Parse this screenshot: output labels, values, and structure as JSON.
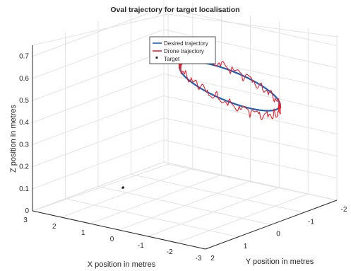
{
  "chart_data": {
    "type": "line",
    "projection": "3d",
    "title": "Oval trajectory for target localisation",
    "xlabel": "X position in metres",
    "ylabel": "Y position in metres",
    "zlabel": "Z position in metres",
    "xlim": [
      -3,
      3
    ],
    "ylim": [
      -2,
      2
    ],
    "zlim": [
      0,
      0.75
    ],
    "x_ticks": [
      "3",
      "2",
      "1",
      "0",
      "-1",
      "-2",
      "-3"
    ],
    "y_ticks": [
      "2",
      "1",
      "0",
      "-1",
      "-2"
    ],
    "z_ticks": [
      "0",
      "0.1",
      "0.2",
      "0.3",
      "0.4",
      "0.5",
      "0.6",
      "0.7"
    ],
    "grid": true,
    "legend_position": "top-center",
    "series": [
      {
        "name": "Desired trajectory",
        "style": "line",
        "color": "#1f5fb4",
        "shape": "ellipse",
        "center": {
          "x": -0.2,
          "y": -1.2
        },
        "radii": {
          "x": 1.6,
          "y": 0.6
        },
        "z_range": [
          0.42,
          0.54
        ]
      },
      {
        "name": "Drone trajectory",
        "style": "line",
        "color": "#e8202a",
        "shape": "noisy ellipse",
        "center": {
          "x": -0.2,
          "y": -1.2
        },
        "radii": {
          "x": 1.6,
          "y": 0.6
        },
        "z_range": [
          0.4,
          0.56
        ]
      },
      {
        "name": "Target",
        "style": "marker",
        "marker": "*",
        "color": "#000000",
        "points": [
          {
            "x": 1.0,
            "y": 1.0,
            "z": 0.1
          }
        ]
      }
    ]
  }
}
